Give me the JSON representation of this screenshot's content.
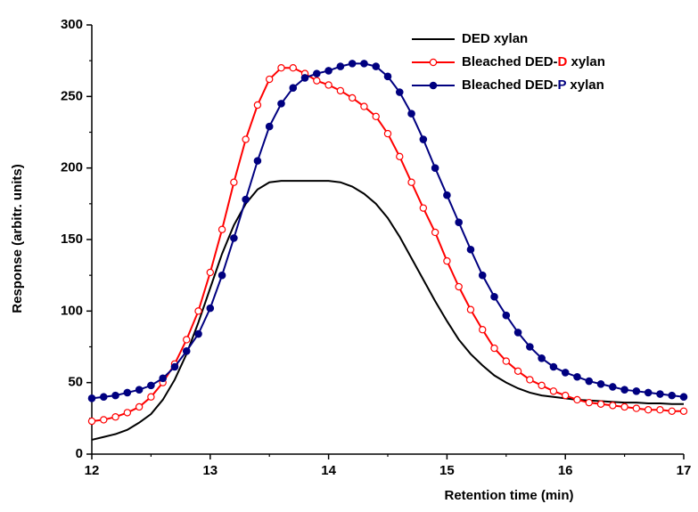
{
  "chart_data": {
    "type": "line",
    "xlabel": "Retention time (min)",
    "ylabel": "Response (arbitr. units)",
    "xlim": [
      12,
      17
    ],
    "ylim": [
      0,
      300
    ],
    "xticks": [
      12,
      13,
      14,
      15,
      16,
      17
    ],
    "yticks": [
      0,
      50,
      100,
      150,
      200,
      250,
      300
    ],
    "legend": "upper-right",
    "x": [
      12,
      12.1,
      12.2,
      12.3,
      12.4,
      12.5,
      12.6,
      12.7,
      12.8,
      12.9,
      13,
      13.1,
      13.2,
      13.3,
      13.4,
      13.5,
      13.6,
      13.7,
      13.8,
      13.9,
      14,
      14.1,
      14.2,
      14.3,
      14.4,
      14.5,
      14.6,
      14.7,
      14.8,
      14.9,
      15,
      15.1,
      15.2,
      15.3,
      15.4,
      15.5,
      15.6,
      15.7,
      15.8,
      15.9,
      16,
      16.1,
      16.2,
      16.3,
      16.4,
      16.5,
      16.6,
      16.7,
      16.8,
      16.9,
      17
    ],
    "series": [
      {
        "name": "DED xylan",
        "color": "#000000",
        "marker": "none",
        "values": [
          10,
          12,
          14,
          17,
          22,
          28,
          38,
          52,
          70,
          92,
          116,
          140,
          160,
          175,
          185,
          190,
          191,
          191,
          191,
          191,
          191,
          190,
          187,
          182,
          175,
          165,
          152,
          137,
          122,
          107,
          93,
          80,
          70,
          62,
          55,
          50,
          46,
          43,
          41,
          40,
          39,
          38,
          37.5,
          37,
          36.5,
          36,
          36,
          35.5,
          35.5,
          35,
          35
        ]
      },
      {
        "name": "Bleached DED-D xylan",
        "color": "#ff0000",
        "marker": "open-circle",
        "values": [
          23,
          24,
          26,
          29,
          33,
          40,
          50,
          63,
          80,
          100,
          127,
          157,
          190,
          220,
          244,
          262,
          270,
          270,
          266,
          261,
          258,
          254,
          249,
          243,
          236,
          224,
          208,
          190,
          172,
          155,
          135,
          117,
          101,
          87,
          74,
          65,
          58,
          52,
          48,
          44,
          41,
          38,
          36,
          35,
          34,
          33,
          32,
          31,
          31,
          30,
          30
        ]
      },
      {
        "name": "Bleached DED-P xylan",
        "color": "#000080",
        "marker": "filled-circle",
        "values": [
          39,
          40,
          41,
          43,
          45,
          48,
          53,
          61,
          72,
          84,
          102,
          125,
          151,
          178,
          205,
          229,
          245,
          256,
          263,
          266,
          268,
          271,
          273,
          273,
          271,
          264,
          253,
          238,
          220,
          200,
          181,
          162,
          143,
          125,
          110,
          97,
          85,
          75,
          67,
          61,
          57,
          54,
          51,
          49,
          47,
          45,
          44,
          43,
          42,
          41,
          40
        ]
      }
    ]
  }
}
